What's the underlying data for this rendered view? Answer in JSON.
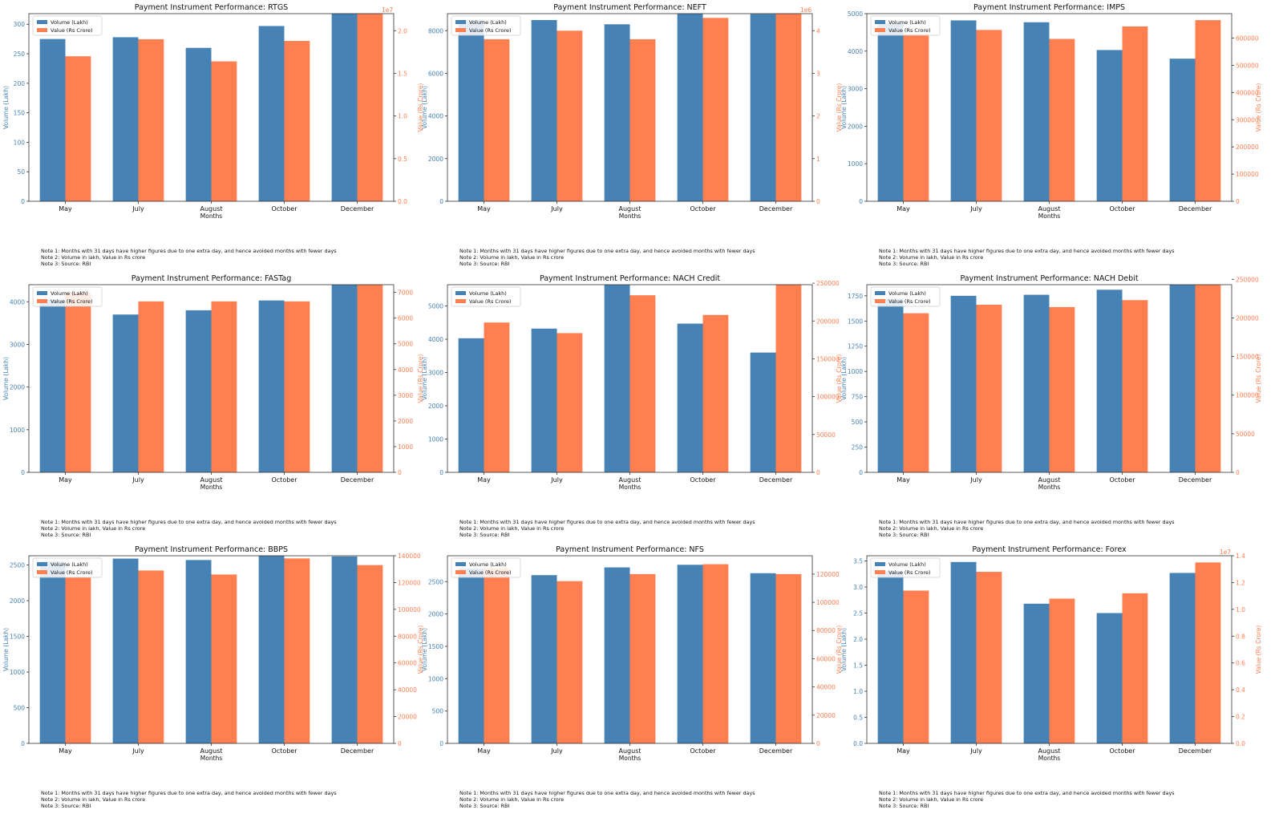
{
  "colors": {
    "volume": "#4682b4",
    "value": "#ff7f50",
    "axis": "#333333",
    "text": "#111111"
  },
  "notes": [
    "Note 1: Months with 31 days have higher figures due to one extra day, and hence avoided months with fewer days",
    "Note 2: Volume in lakh, Value in Rs crore",
    "Note 3: Source: RBI"
  ],
  "chart_data": [
    {
      "type": "bar",
      "title": "Payment Instrument Performance: RTGS",
      "xlabel": "Months",
      "ylabel": "Volume (Lakh)",
      "y2label": "Value (Rs Crore)",
      "y2_offset_text": "1e7",
      "categories": [
        "May",
        "July",
        "August",
        "October",
        "December"
      ],
      "series": [
        {
          "name": "Volume (Lakh)",
          "axis": "left",
          "values": [
            275,
            278,
            260,
            297,
            318
          ]
        },
        {
          "name": "Value (Rs Crore)",
          "axis": "right",
          "values": [
            17000000,
            19000000,
            16400000,
            18800000,
            22000000
          ]
        }
      ],
      "ylim": [
        0,
        318
      ],
      "yticks": [
        0,
        50,
        100,
        150,
        200,
        250,
        300
      ],
      "y2lim": [
        0,
        22000000
      ],
      "y2ticks": [
        0,
        5000000,
        10000000,
        15000000,
        20000000
      ],
      "y2ticklabels": [
        "0.0",
        "0.5",
        "1.0",
        "1.5",
        "2.0"
      ],
      "legend": "top-left"
    },
    {
      "type": "bar",
      "title": "Payment Instrument Performance: NEFT",
      "xlabel": "Months",
      "ylabel": "Volume (Lakh)",
      "y2label": "Value (Rs Crore)",
      "y2_offset_text": "1e6",
      "categories": [
        "May",
        "July",
        "August",
        "October",
        "December"
      ],
      "series": [
        {
          "name": "Volume (Lakh)",
          "axis": "left",
          "values": [
            8500,
            8500,
            8300,
            8800,
            8780
          ]
        },
        {
          "name": "Value (Rs Crore)",
          "axis": "right",
          "values": [
            3800000,
            4000000,
            3800000,
            4300000,
            4400000
          ]
        }
      ],
      "ylim": [
        0,
        8800
      ],
      "yticks": [
        0,
        2000,
        4000,
        6000,
        8000
      ],
      "y2lim": [
        0,
        4400000
      ],
      "y2ticks": [
        0,
        1000000,
        2000000,
        3000000,
        4000000
      ],
      "y2ticklabels": [
        "0",
        "1",
        "2",
        "3",
        "4"
      ],
      "legend": "top-left"
    },
    {
      "type": "bar",
      "title": "Payment Instrument Performance: IMPS",
      "xlabel": "Months",
      "ylabel": "Volume (Lakh)",
      "y2label": "Value (Rs Crore)",
      "y2_offset_text": "",
      "categories": [
        "May",
        "July",
        "August",
        "October",
        "December"
      ],
      "series": [
        {
          "name": "Volume (Lakh)",
          "axis": "left",
          "values": [
            4750,
            4820,
            4770,
            4030,
            3800
          ]
        },
        {
          "name": "Value (Rs Crore)",
          "axis": "right",
          "values": [
            615000,
            630000,
            597000,
            643000,
            666000
          ]
        }
      ],
      "ylim": [
        0,
        5000
      ],
      "yticks": [
        0,
        1000,
        2000,
        3000,
        4000,
        5000
      ],
      "y2lim": [
        0,
        690000
      ],
      "y2ticks": [
        0,
        100000,
        200000,
        300000,
        400000,
        500000,
        600000
      ],
      "y2ticklabels": [
        "0",
        "100000",
        "200000",
        "300000",
        "400000",
        "500000",
        "600000"
      ],
      "legend": "top-left"
    },
    {
      "type": "bar",
      "title": "Payment Instrument Performance: FASTag",
      "xlabel": "Months",
      "ylabel": "Volume (Lakh)",
      "y2label": "Value (Rs Crore)",
      "y2_offset_text": "",
      "categories": [
        "May",
        "July",
        "August",
        "October",
        "December"
      ],
      "series": [
        {
          "name": "Volume (Lakh)",
          "axis": "left",
          "values": [
            4050,
            3700,
            3800,
            4030,
            4400
          ]
        },
        {
          "name": "Value (Rs Crore)",
          "axis": "right",
          "values": [
            7000,
            6650,
            6650,
            6650,
            7300
          ]
        }
      ],
      "ylim": [
        0,
        4400
      ],
      "yticks": [
        0,
        1000,
        2000,
        3000,
        4000
      ],
      "y2lim": [
        0,
        7300
      ],
      "y2ticks": [
        0,
        1000,
        2000,
        3000,
        4000,
        5000,
        6000,
        7000
      ],
      "y2ticklabels": [
        "0",
        "1000",
        "2000",
        "3000",
        "4000",
        "5000",
        "6000",
        "7000"
      ],
      "legend": "top-left"
    },
    {
      "type": "bar",
      "title": "Payment Instrument Performance: NACH Credit",
      "xlabel": "Months",
      "ylabel": "Volume (Lakh)",
      "y2label": "Value (Rs Crore)",
      "y2_offset_text": "",
      "categories": [
        "May",
        "July",
        "August",
        "October",
        "December"
      ],
      "series": [
        {
          "name": "Volume (Lakh)",
          "axis": "left",
          "values": [
            4030,
            4320,
            5640,
            4470,
            3600
          ]
        },
        {
          "name": "Value (Rs Crore)",
          "axis": "right",
          "values": [
            198000,
            184000,
            234000,
            208000,
            248000
          ]
        }
      ],
      "ylim": [
        0,
        5640
      ],
      "yticks": [
        0,
        1000,
        2000,
        3000,
        4000,
        5000
      ],
      "y2lim": [
        0,
        248000
      ],
      "y2ticks": [
        0,
        50000,
        100000,
        150000,
        200000,
        250000
      ],
      "y2ticklabels": [
        "0",
        "50000",
        "100000",
        "150000",
        "200000",
        "250000"
      ],
      "legend": "top-left"
    },
    {
      "type": "bar",
      "title": "Payment Instrument Performance: NACH Debit",
      "xlabel": "Months",
      "ylabel": "Volume (Lakh)",
      "y2label": "Value (Rs Crore)",
      "y2_offset_text": "",
      "categories": [
        "May",
        "July",
        "August",
        "October",
        "December"
      ],
      "series": [
        {
          "name": "Volume (Lakh)",
          "axis": "left",
          "values": [
            1720,
            1750,
            1760,
            1810,
            1860
          ]
        },
        {
          "name": "Value (Rs Crore)",
          "axis": "right",
          "values": [
            206000,
            217000,
            214000,
            223000,
            243000
          ]
        }
      ],
      "ylim": [
        0,
        1860
      ],
      "yticks": [
        0,
        250,
        500,
        750,
        1000,
        1250,
        1500,
        1750
      ],
      "y2lim": [
        0,
        243000
      ],
      "y2ticks": [
        0,
        50000,
        100000,
        150000,
        200000,
        250000
      ],
      "y2ticklabels": [
        "0",
        "50000",
        "100000",
        "150000",
        "200000",
        "250000"
      ],
      "legend": "top-left"
    },
    {
      "type": "bar",
      "title": "Payment Instrument Performance: BBPS",
      "xlabel": "Months",
      "ylabel": "Volume (Lakh)",
      "y2label": "Value (Rs Crore)",
      "y2_offset_text": "",
      "categories": [
        "May",
        "July",
        "August",
        "October",
        "December"
      ],
      "series": [
        {
          "name": "Volume (Lakh)",
          "axis": "left",
          "values": [
            2550,
            2590,
            2570,
            2630,
            2620
          ]
        },
        {
          "name": "Value (Rs Crore)",
          "axis": "right",
          "values": [
            124000,
            129000,
            126000,
            138000,
            133000
          ]
        }
      ],
      "ylim": [
        0,
        2630
      ],
      "yticks": [
        0,
        500,
        1000,
        1500,
        2000,
        2500
      ],
      "y2lim": [
        0,
        140000
      ],
      "y2ticks": [
        0,
        20000,
        40000,
        60000,
        80000,
        100000,
        120000,
        140000
      ],
      "y2ticklabels": [
        "0",
        "20000",
        "40000",
        "60000",
        "80000",
        "100000",
        "120000",
        "140000"
      ],
      "legend": "top-left"
    },
    {
      "type": "bar",
      "title": "Payment Instrument Performance: NFS",
      "xlabel": "Months",
      "ylabel": "Volume (Lakh)",
      "y2label": "Value (Rs Crore)",
      "y2_offset_text": "",
      "categories": [
        "May",
        "July",
        "August",
        "October",
        "December"
      ],
      "series": [
        {
          "name": "Volume (Lakh)",
          "axis": "left",
          "values": [
            2700,
            2600,
            2720,
            2760,
            2630
          ]
        },
        {
          "name": "Value (Rs Crore)",
          "axis": "right",
          "values": [
            124000,
            115000,
            120000,
            127000,
            120000
          ]
        }
      ],
      "ylim": [
        0,
        2900
      ],
      "yticks": [
        0,
        500,
        1000,
        1500,
        2000,
        2500
      ],
      "y2lim": [
        0,
        133000
      ],
      "y2ticks": [
        0,
        20000,
        40000,
        60000,
        80000,
        100000,
        120000
      ],
      "y2ticklabels": [
        "0",
        "20000",
        "40000",
        "60000",
        "80000",
        "100000",
        "120000"
      ],
      "legend": "top-left"
    },
    {
      "type": "bar",
      "title": "Payment Instrument Performance: Forex",
      "xlabel": "Months",
      "ylabel": "Volume (Lakh)",
      "y2label": "Value (Rs Crore)",
      "y2_offset_text": "1e7",
      "categories": [
        "May",
        "July",
        "August",
        "October",
        "December"
      ],
      "series": [
        {
          "name": "Volume (Lakh)",
          "axis": "left",
          "values": [
            3.3,
            3.48,
            2.68,
            2.5,
            3.27
          ]
        },
        {
          "name": "Value (Rs Crore)",
          "axis": "right",
          "values": [
            11400000,
            12800000,
            10800000,
            11200000,
            13500000
          ]
        }
      ],
      "ylim": [
        0,
        3.6
      ],
      "yticks": [
        0,
        0.5,
        1.0,
        1.5,
        2.0,
        2.5,
        3.0,
        3.5
      ],
      "yticklabels": [
        "0.0",
        "0.5",
        "1.0",
        "1.5",
        "2.0",
        "2.5",
        "3.0",
        "3.5"
      ],
      "y2lim": [
        0,
        14000000
      ],
      "y2ticks": [
        0,
        2000000,
        4000000,
        6000000,
        8000000,
        10000000,
        12000000,
        14000000
      ],
      "y2ticklabels": [
        "0.0",
        "0.2",
        "0.4",
        "0.6",
        "0.8",
        "1.0",
        "1.2",
        "1.4"
      ],
      "legend": "top-left"
    }
  ]
}
